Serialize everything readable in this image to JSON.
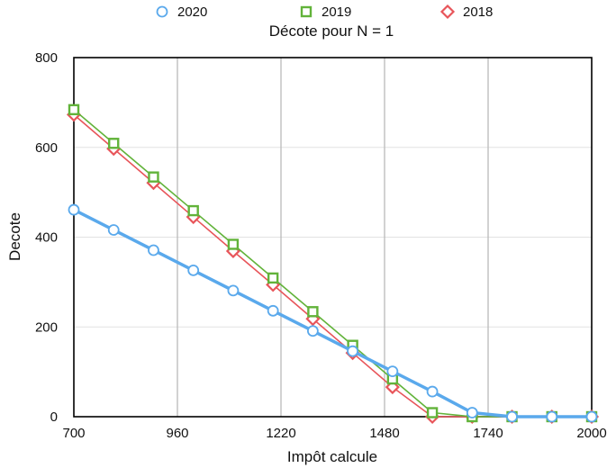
{
  "chart_data": {
    "type": "line",
    "title": "Décote pour N = 1",
    "xlabel": "Impôt calcule",
    "ylabel": "Decote",
    "xlim": [
      700,
      2000
    ],
    "ylim": [
      0,
      800
    ],
    "x_ticks": [
      700,
      960,
      1220,
      1480,
      1740,
      2000
    ],
    "y_ticks": [
      0,
      200,
      400,
      600,
      800
    ],
    "x_tick_labels": [
      "700",
      "960",
      "1220",
      "1480",
      "1740",
      "2000"
    ],
    "y_tick_labels": [
      "0",
      "200",
      "400",
      "600",
      "800"
    ],
    "grid": {
      "vertical": true,
      "horizontal": true
    },
    "legend": {
      "position": "top"
    },
    "x": [
      700,
      800,
      900,
      1000,
      1100,
      1200,
      1300,
      1400,
      1500,
      1600,
      1700,
      1800,
      1900,
      2000
    ],
    "series": [
      {
        "name": "2020",
        "color": "#5aa9ec",
        "marker": "circle",
        "values": [
          461,
          416,
          371,
          326,
          281,
          236,
          191,
          146,
          101,
          56,
          9,
          0,
          0,
          0
        ]
      },
      {
        "name": "2019",
        "color": "#62b33a",
        "marker": "square",
        "values": [
          684,
          609,
          534,
          459,
          384,
          309,
          234,
          159,
          84,
          9,
          0,
          0,
          0,
          0
        ]
      },
      {
        "name": "2018",
        "color": "#e8555a",
        "marker": "diamond",
        "values": [
          673,
          597,
          521,
          445,
          369,
          294,
          218,
          142,
          66,
          0,
          0,
          0,
          0,
          0
        ]
      }
    ]
  }
}
